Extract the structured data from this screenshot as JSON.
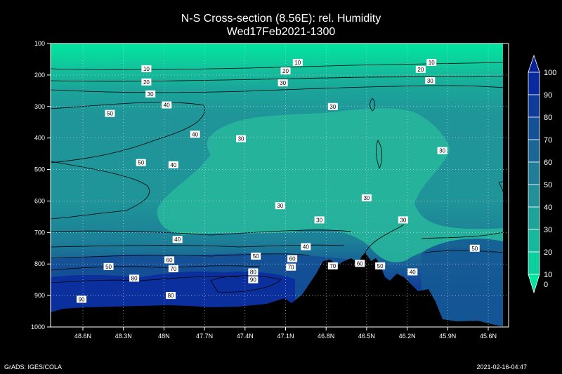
{
  "title": "N-S Cross-section (8.56E): rel. Humidity",
  "subtitle": "Wed17Feb2021-1300",
  "footer_left": "GrADS: IGES/COLA",
  "footer_right": "2021-02-16-04:47",
  "chart_data": {
    "type": "heatmap",
    "variable": "rel. Humidity",
    "x_ticks": [
      "48.6N",
      "48.3N",
      "48N",
      "47.7N",
      "47.4N",
      "47.1N",
      "46.8N",
      "46.5N",
      "46.2N",
      "45.9N",
      "45.6N"
    ],
    "y_ticks": [
      100,
      200,
      300,
      400,
      500,
      600,
      700,
      800,
      900,
      1000
    ],
    "y_range": [
      100,
      1000
    ],
    "y_inverted": true,
    "grid": true,
    "colorbar": {
      "levels": [
        0,
        10,
        20,
        30,
        40,
        50,
        60,
        70,
        80,
        90,
        100
      ],
      "colors": [
        "#00e5a0",
        "#0bcf9c",
        "#16b99b",
        "#1da39a",
        "#219098",
        "#1f7d97",
        "#1a6796",
        "#155196",
        "#0f3c99",
        "#0a2aa0",
        "#082095"
      ],
      "placement": "right"
    },
    "contour_labels": [
      {
        "value": "10",
        "lat": 48.13,
        "p": 180
      },
      {
        "value": "20",
        "lat": 48.13,
        "p": 222
      },
      {
        "value": "30",
        "lat": 48.1,
        "p": 260
      },
      {
        "value": "50",
        "lat": 48.4,
        "p": 322
      },
      {
        "value": "40",
        "lat": 47.98,
        "p": 295
      },
      {
        "value": "10",
        "lat": 47.01,
        "p": 160
      },
      {
        "value": "20",
        "lat": 47.1,
        "p": 187
      },
      {
        "value": "30",
        "lat": 47.12,
        "p": 225
      },
      {
        "value": "10",
        "lat": 46.02,
        "p": 160
      },
      {
        "value": "20",
        "lat": 46.1,
        "p": 182
      },
      {
        "value": "30",
        "lat": 46.03,
        "p": 218
      },
      {
        "value": "30",
        "lat": 46.75,
        "p": 300
      },
      {
        "value": "40",
        "lat": 47.77,
        "p": 388
      },
      {
        "value": "30",
        "lat": 47.43,
        "p": 402
      },
      {
        "value": "50",
        "lat": 48.17,
        "p": 478
      },
      {
        "value": "40",
        "lat": 47.93,
        "p": 485
      },
      {
        "value": "30",
        "lat": 45.94,
        "p": 440
      },
      {
        "value": "30",
        "lat": 46.5,
        "p": 590
      },
      {
        "value": "30",
        "lat": 47.14,
        "p": 615
      },
      {
        "value": "30",
        "lat": 46.85,
        "p": 660
      },
      {
        "value": "30",
        "lat": 46.23,
        "p": 660
      },
      {
        "value": "40",
        "lat": 47.9,
        "p": 722
      },
      {
        "value": "40",
        "lat": 46.95,
        "p": 745
      },
      {
        "value": "50",
        "lat": 47.32,
        "p": 775
      },
      {
        "value": "50",
        "lat": 48.41,
        "p": 808
      },
      {
        "value": "60",
        "lat": 47.96,
        "p": 787
      },
      {
        "value": "70",
        "lat": 47.93,
        "p": 815
      },
      {
        "value": "60",
        "lat": 47.05,
        "p": 783
      },
      {
        "value": "70",
        "lat": 47.06,
        "p": 810
      },
      {
        "value": "70",
        "lat": 46.75,
        "p": 806
      },
      {
        "value": "60",
        "lat": 46.55,
        "p": 798
      },
      {
        "value": "50",
        "lat": 46.4,
        "p": 806
      },
      {
        "value": "40",
        "lat": 46.16,
        "p": 825
      },
      {
        "value": "50",
        "lat": 45.7,
        "p": 750
      },
      {
        "value": "80",
        "lat": 47.34,
        "p": 825
      },
      {
        "value": "90",
        "lat": 47.34,
        "p": 850
      },
      {
        "value": "80",
        "lat": 48.22,
        "p": 845
      },
      {
        "value": "80",
        "lat": 47.95,
        "p": 900
      },
      {
        "value": "90",
        "lat": 48.61,
        "p": 912
      }
    ]
  }
}
